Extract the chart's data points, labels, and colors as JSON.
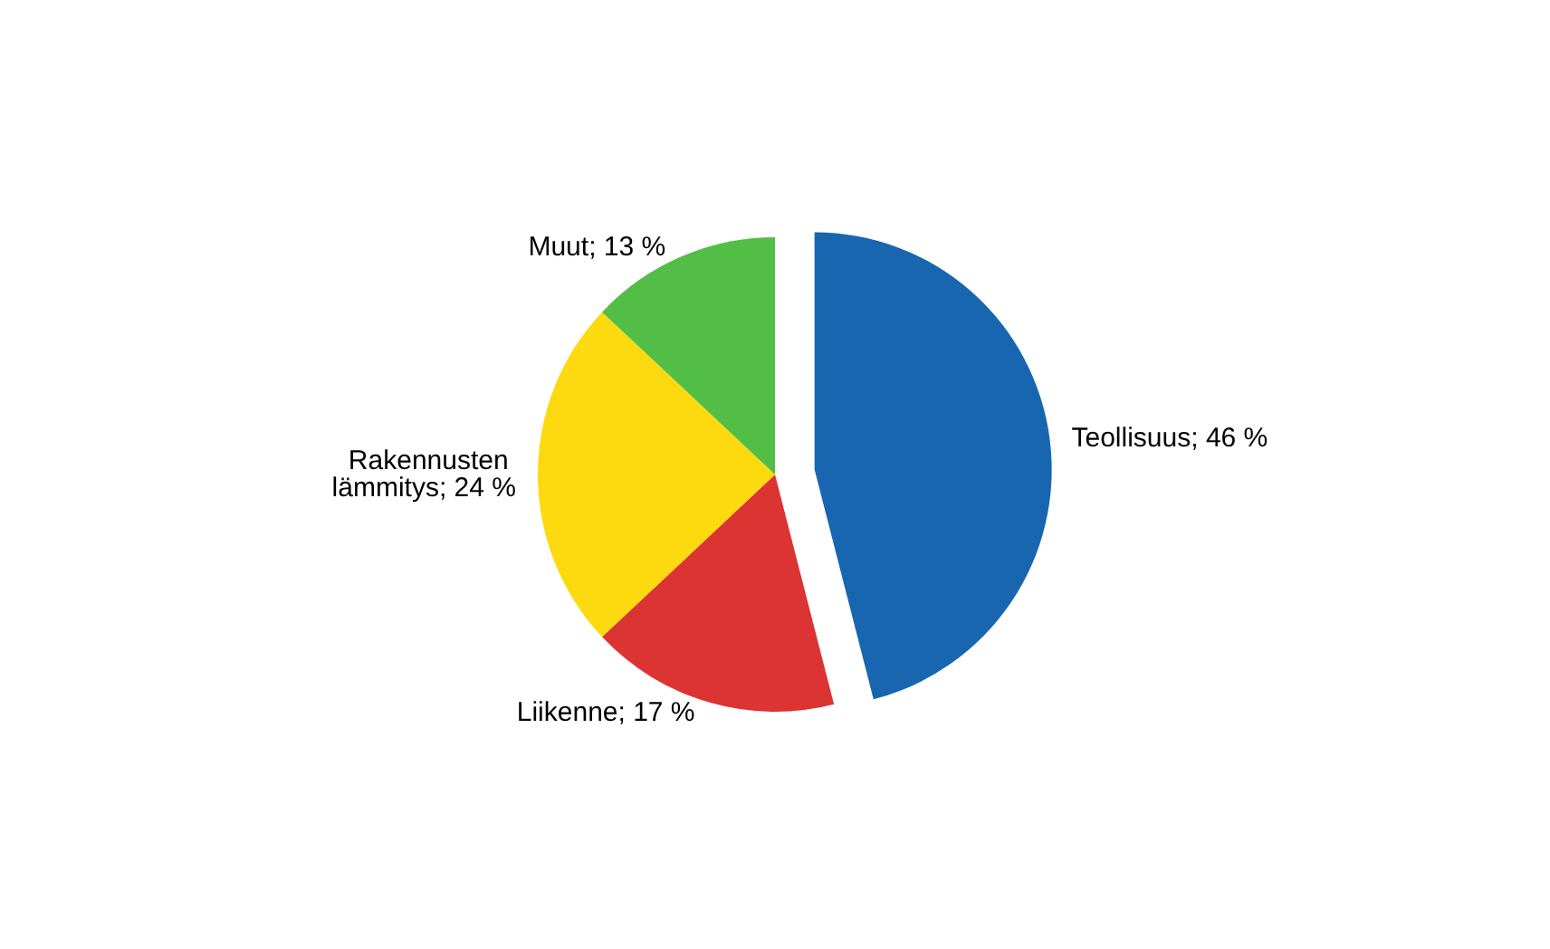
{
  "chart_data": {
    "type": "pie",
    "categories": [
      "Teollisuus",
      "Liikenne",
      "Rakennusten lämmitys",
      "Muut"
    ],
    "values": [
      46,
      17,
      24,
      13
    ],
    "value_labels": [
      "46 %",
      "17 %",
      "24 %",
      "13 %"
    ],
    "colors": [
      "#1866b0",
      "#dc3333",
      "#fdd90f",
      "#53be45"
    ]
  }
}
